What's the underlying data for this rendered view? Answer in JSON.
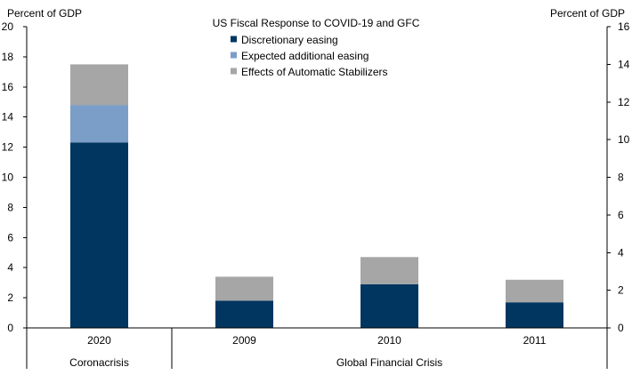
{
  "chart_data": {
    "type": "bar",
    "stacked": true,
    "title": "US Fiscal Response to COVID-19  and GFC",
    "ylabel_left": "Percent of GDP",
    "ylabel_right": "Percent of GDP",
    "ylim_left": [
      0,
      20
    ],
    "ylim_right": [
      0,
      16
    ],
    "yticks_left": [
      "0",
      "2",
      "4",
      "6",
      "8",
      "10",
      "12",
      "14",
      "16",
      "18",
      "20"
    ],
    "yticks_right": [
      "0",
      "2",
      "4",
      "6",
      "8",
      "10",
      "12",
      "14",
      "16"
    ],
    "categories": [
      "2020",
      "2009",
      "2010",
      "2011"
    ],
    "groups": [
      {
        "label": "Coronacrisis",
        "categories": [
          "2020"
        ]
      },
      {
        "label": "Global Financial Crisis",
        "categories": [
          "2009",
          "2010",
          "2011"
        ]
      }
    ],
    "series": [
      {
        "name": "Discretionary easing",
        "color": "#003660",
        "values": [
          12.3,
          1.8,
          2.9,
          1.7
        ]
      },
      {
        "name": "Expected additional easing",
        "color": "#7a9ec8",
        "values": [
          2.5,
          0,
          0,
          0
        ]
      },
      {
        "name": "Effects of Automatic Stabilizers",
        "color": "#a6a6a6",
        "values": [
          2.7,
          1.6,
          1.8,
          1.5
        ]
      }
    ],
    "legend_position": "top-center",
    "grid": false
  }
}
